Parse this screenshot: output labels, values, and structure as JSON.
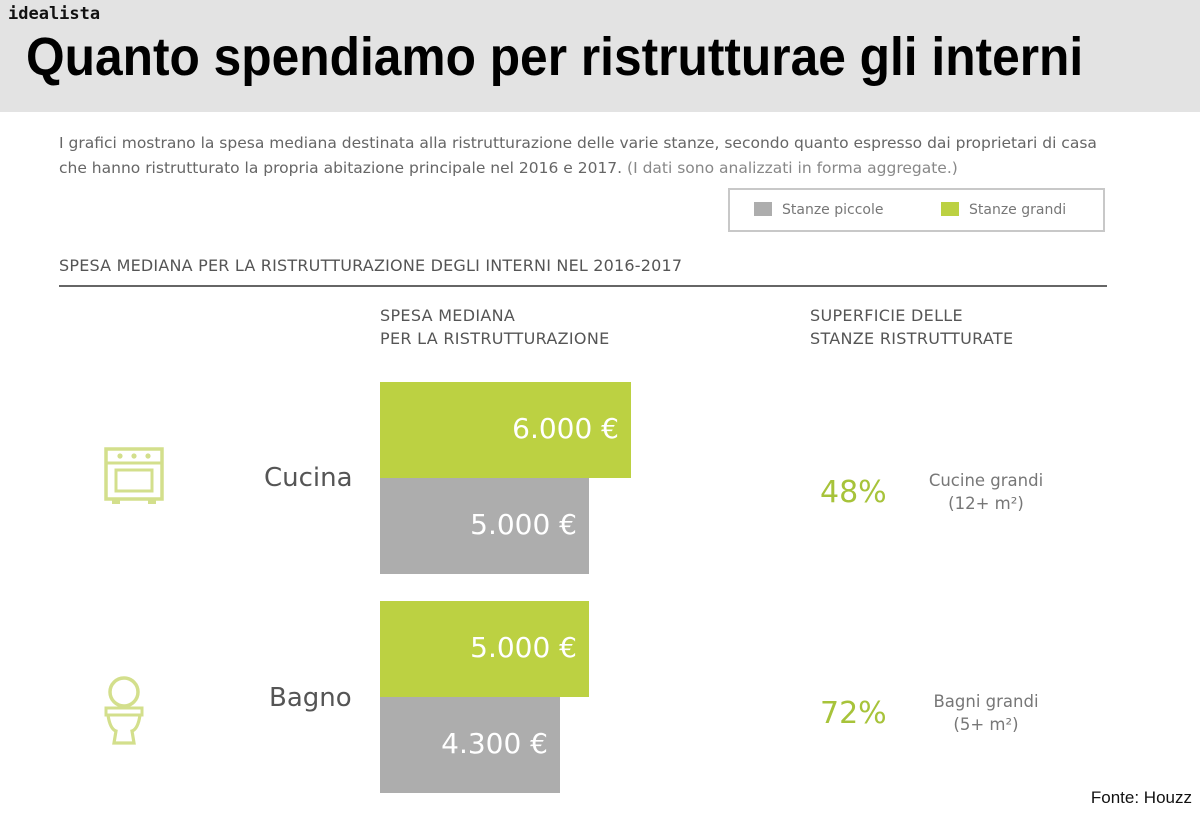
{
  "brand": "idealista",
  "title": "Quanto spendiamo per ristrutturae gli interni",
  "intro": {
    "text": "I grafici mostrano la spesa mediana destinata alla ristrutturazione delle varie stanze, secondo quanto espresso dai proprietari di casa che hanno ristrutturato la propria abitazione principale nel 2016 e 2017.",
    "note": "(I dati sono analizzati in forma aggregate.)"
  },
  "legend": {
    "small": "Stanze piccole",
    "large": "Stanze grandi"
  },
  "section_title": "SPESA MEDIANA PER LA RISTRUTTURAZIONE DEGLI INTERNI NEL 2016-2017",
  "columns": {
    "spend_line1": "SPESA MEDIANA",
    "spend_line2": "PER LA RISTRUTTURAZIONE",
    "surface_line1": "SUPERFICIE DELLE",
    "surface_line2": "STANZE RISTRUTTURATE"
  },
  "rooms": [
    {
      "name": "Cucina",
      "icon": "oven-icon",
      "large_label": "6.000 €",
      "small_label": "5.000 €",
      "pct": "48%",
      "size_line1": "Cucine grandi",
      "size_line2": "(12+ m²)"
    },
    {
      "name": "Bagno",
      "icon": "toilet-icon",
      "large_label": "5.000 €",
      "small_label": "4.300 €",
      "pct": "72%",
      "size_line1": "Bagni grandi",
      "size_line2": "(5+ m²)"
    }
  ],
  "colors": {
    "small": "#adadad",
    "large": "#bcd142",
    "accent": "#a7c33a",
    "icon": "#d3df8c"
  },
  "chart_data": {
    "type": "bar",
    "orientation": "horizontal",
    "categories": [
      "Cucina",
      "Bagno"
    ],
    "series": [
      {
        "name": "Stanze grandi",
        "values": [
          6000,
          5000
        ]
      },
      {
        "name": "Stanze piccole",
        "values": [
          5000,
          4300
        ]
      }
    ],
    "xlim": [
      0,
      6000
    ],
    "grid": false,
    "legend_position": "top-right",
    "share_large_rooms": [
      48,
      72
    ]
  },
  "source": "Fonte: Houzz"
}
